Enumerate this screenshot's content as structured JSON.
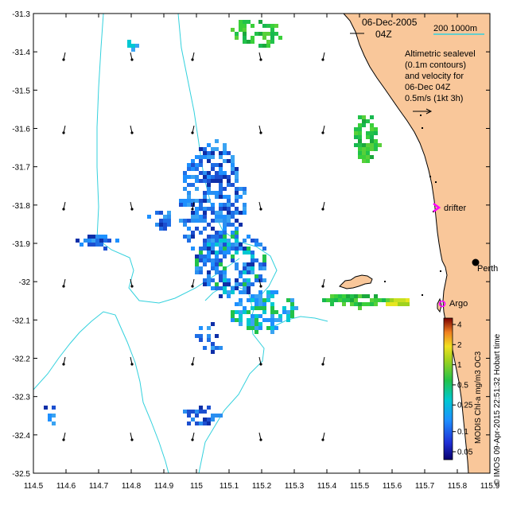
{
  "map": {
    "date": "06-Dec-2005",
    "time": "04Z",
    "scale_label": "200  1000m",
    "legend_lines": [
      "Altimetric sealevel",
      "(0.1m contours)",
      "and velocity for",
      "06-Dec 04Z",
      "0.5m/s (1kt 3h)"
    ],
    "labels": {
      "drifter": "drifter",
      "perth": "Perth",
      "argo": "Argo"
    },
    "colorbar_title": "MODIS Chl-a mg/m3 OC3",
    "colorbar_ticks": [
      "4",
      "2",
      "1",
      "0.5",
      "0.25",
      "0.1",
      "0.05"
    ],
    "credit": "© IMOS 09-Apr-2015 22:51:32 Hobart time",
    "x_ticks": [
      "114.5",
      "114.6",
      "114.7",
      "114.8",
      "114.9",
      "115",
      "115.1",
      "115.2",
      "115.3",
      "115.4",
      "115.5",
      "115.6",
      "115.7",
      "115.8",
      "115.9"
    ],
    "y_ticks": [
      "-31.3",
      "-31.4",
      "-31.5",
      "-31.6",
      "-31.7",
      "-31.8",
      "-31.9",
      "-32",
      "-32.1",
      "-32.2",
      "-32.3",
      "-32.4",
      "-32.5"
    ],
    "lon_range": [
      114.5,
      115.9
    ],
    "lat_range": [
      -32.5,
      -31.3
    ],
    "colors": {
      "land": "#f9c79a",
      "contour": "#33d1dd",
      "drifter": "#ff00ff",
      "chl_low": "#1f6fe6",
      "chl_high": "#22c24a"
    }
  }
}
